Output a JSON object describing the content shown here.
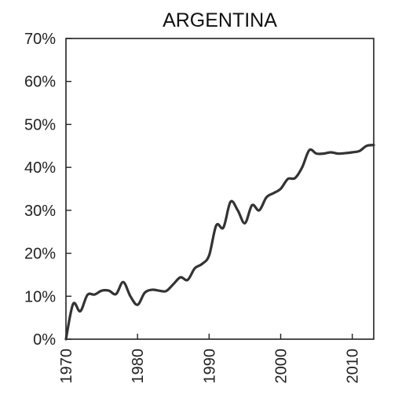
{
  "chart_data": {
    "type": "line",
    "title": "ARGENTINA",
    "xlabel": "",
    "ylabel": "",
    "xlim": [
      1970,
      2013
    ],
    "ylim": [
      0,
      70
    ],
    "x_ticks": [
      1970,
      1980,
      1990,
      2000,
      2010
    ],
    "x_tick_labels": [
      "1970",
      "1980",
      "1990",
      "2000",
      "2010"
    ],
    "y_ticks": [
      0,
      10,
      20,
      30,
      40,
      50,
      60,
      70
    ],
    "y_tick_labels": [
      "0%",
      "10%",
      "20%",
      "30%",
      "40%",
      "50%",
      "60%",
      "70%"
    ],
    "grid": false,
    "legend": "none",
    "line_color": "#333333",
    "series": [
      {
        "x": [
          1970,
          1971,
          1972,
          1973,
          1974,
          1975,
          1976,
          1977,
          1978,
          1979,
          1980,
          1981,
          1982,
          1983,
          1984,
          1985,
          1986,
          1987,
          1988,
          1989,
          1990,
          1991,
          1992,
          1993,
          1994,
          1995,
          1996,
          1997,
          1998,
          1999,
          2000,
          2001,
          2002,
          2003,
          2004,
          2005,
          2006,
          2007,
          2008,
          2009,
          2010,
          2011,
          2012,
          2013
        ],
        "values": [
          0,
          8.2,
          6.5,
          10.3,
          10.4,
          11.3,
          11.3,
          10.5,
          13.3,
          10.0,
          8.0,
          10.8,
          11.5,
          11.3,
          11.2,
          12.8,
          14.4,
          13.8,
          16.5,
          17.5,
          19.5,
          26.5,
          26.0,
          32.0,
          30.0,
          27.0,
          31.2,
          30.0,
          33.0,
          34.0,
          35.0,
          37.3,
          37.5,
          40.0,
          44.0,
          43.2,
          43.2,
          43.5,
          43.2,
          43.3,
          43.5,
          43.8,
          45.0,
          45.2
        ]
      }
    ]
  }
}
